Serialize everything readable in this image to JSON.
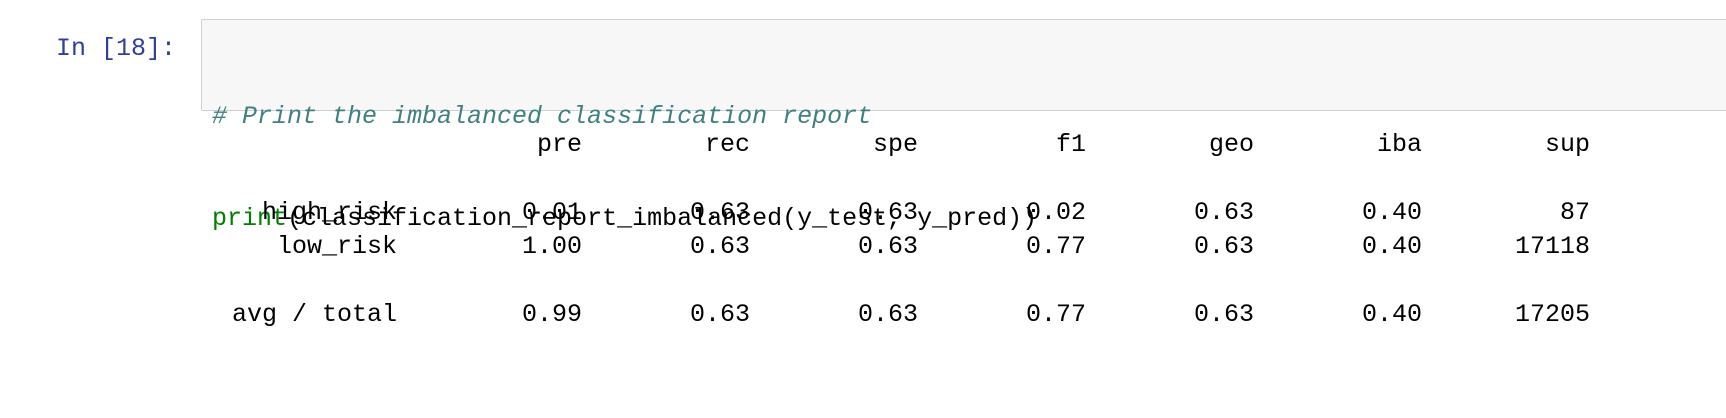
{
  "cell": {
    "prompt": "In [18]:",
    "code": {
      "line1_comment": "# Print the imbalanced classification report",
      "line2_builtin": "print",
      "line2_rest": "(classification_report_imbalanced(y_test, y_pred))"
    }
  },
  "output": {
    "headers": [
      "pre",
      "rec",
      "spe",
      "f1",
      "geo",
      "iba",
      "sup"
    ],
    "rows": [
      {
        "label": "high_risk",
        "values": [
          "0.01",
          "0.63",
          "0.63",
          "0.02",
          "0.63",
          "0.40",
          "87"
        ]
      },
      {
        "label": "low_risk",
        "values": [
          "1.00",
          "0.63",
          "0.63",
          "0.77",
          "0.63",
          "0.40",
          "17118"
        ]
      },
      {
        "label": "avg / total",
        "values": [
          "0.99",
          "0.63",
          "0.63",
          "0.77",
          "0.63",
          "0.40",
          "17205"
        ]
      }
    ]
  },
  "colors": {
    "prompt": "#303f9f",
    "comment": "#408080",
    "builtin": "#008000",
    "input_bg": "#f7f7f7",
    "input_border": "#cfcfcf"
  }
}
